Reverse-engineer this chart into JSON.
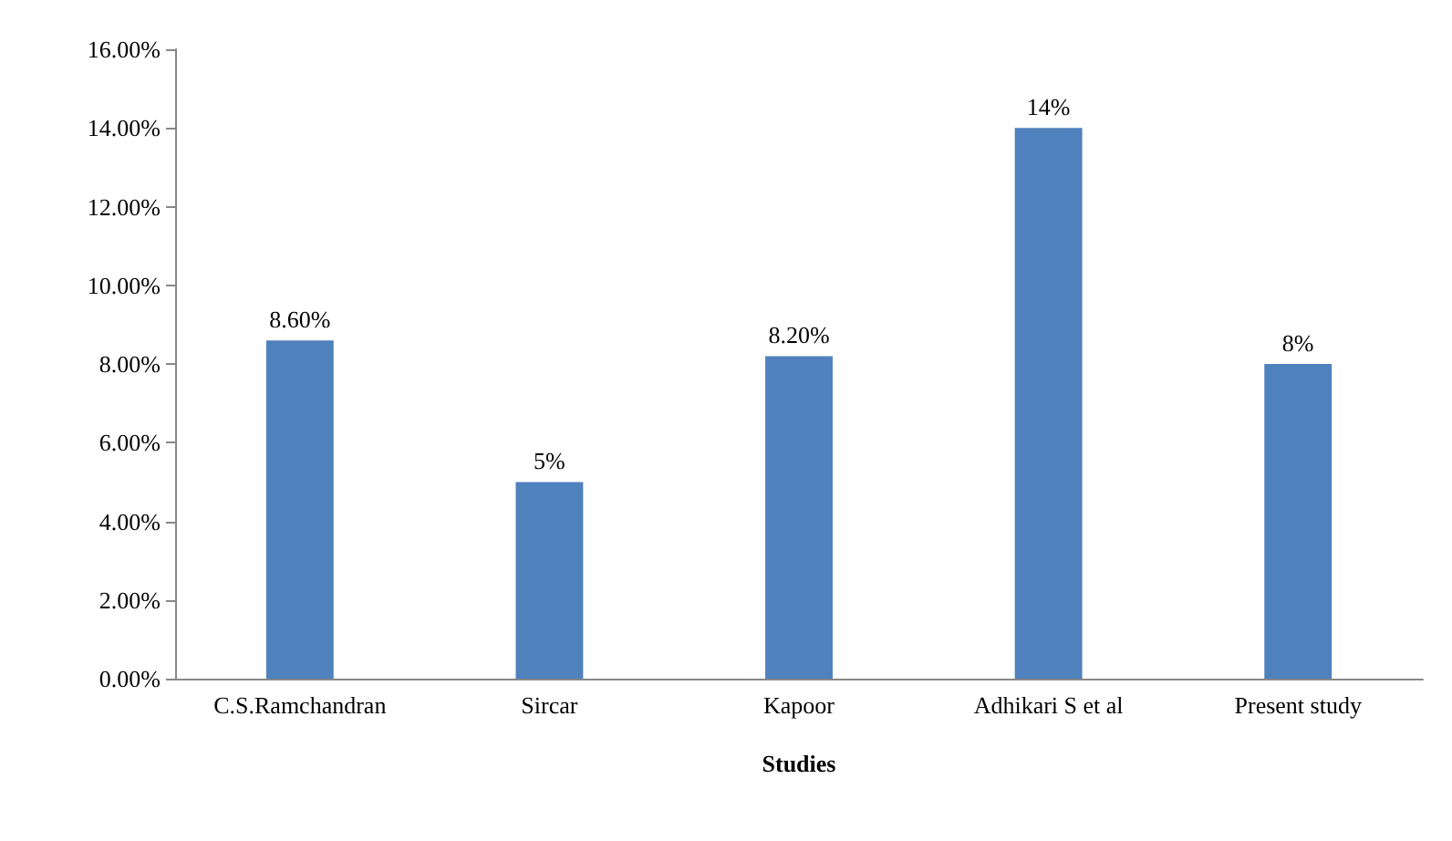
{
  "chart_data": {
    "type": "bar",
    "xlabel": "Studies",
    "categories": [
      "C.S.Ramchandran",
      "Sircar",
      "Kapoor",
      "Adhikari S et al",
      "Present study"
    ],
    "values": [
      8.6,
      5,
      8.2,
      14,
      8
    ],
    "value_labels": [
      "8.60%",
      "5%",
      "8.20%",
      "14%",
      "8%"
    ],
    "color": "#4f81bd",
    "ylim": [
      0,
      16
    ],
    "yticks": [
      {
        "value": 0,
        "label": "0.00%"
      },
      {
        "value": 2,
        "label": "2.00%"
      },
      {
        "value": 4,
        "label": "4.00%"
      },
      {
        "value": 6,
        "label": "6.00%"
      },
      {
        "value": 8,
        "label": "8.00%"
      },
      {
        "value": 10,
        "label": "10.00%"
      },
      {
        "value": 12,
        "label": "12.00%"
      },
      {
        "value": 14,
        "label": "14.00%"
      },
      {
        "value": 16,
        "label": "16.00%"
      }
    ],
    "grid": false
  }
}
